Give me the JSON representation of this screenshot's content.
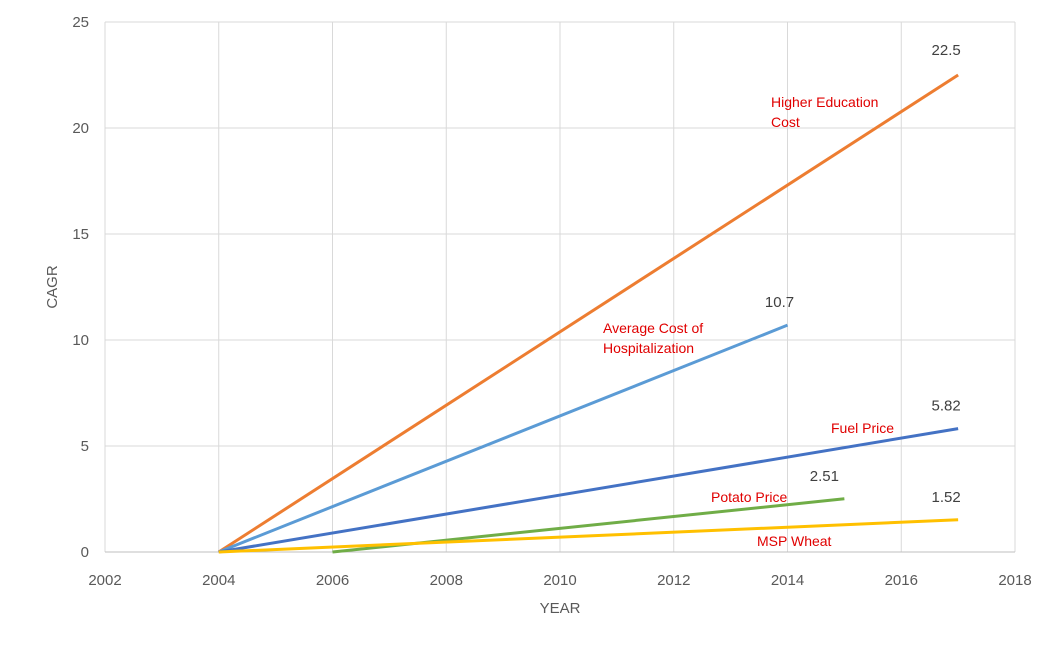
{
  "chart_data": {
    "type": "line",
    "title": "",
    "xlabel": "YEAR",
    "ylabel": "CAGR",
    "xlim": [
      2002,
      2018
    ],
    "ylim": [
      0,
      25
    ],
    "x_ticks": [
      2002,
      2004,
      2006,
      2008,
      2010,
      2012,
      2014,
      2016,
      2018
    ],
    "y_ticks": [
      0,
      5,
      10,
      15,
      20,
      25
    ],
    "grid": true,
    "legend": "none",
    "series": [
      {
        "name": "Higher Education Cost",
        "label_lines": [
          "Higher Education",
          "Cost"
        ],
        "color": "#ED7D31",
        "points": [
          [
            2004,
            0
          ],
          [
            2017,
            22.5
          ]
        ],
        "end_label": "22.5"
      },
      {
        "name": "Average Cost of Hospitalization",
        "label_lines": [
          "Average Cost of",
          "Hospitalization"
        ],
        "color": "#5B9BD5",
        "points": [
          [
            2004,
            0
          ],
          [
            2014,
            10.7
          ]
        ],
        "end_label": "10.7"
      },
      {
        "name": "Fuel Price",
        "label_lines": [
          "Fuel Price"
        ],
        "color": "#4472C4",
        "points": [
          [
            2004,
            0
          ],
          [
            2017,
            5.82
          ]
        ],
        "end_label": "5.82"
      },
      {
        "name": "Potato Price",
        "label_lines": [
          "Potato Price"
        ],
        "color": "#70AD47",
        "points": [
          [
            2006,
            0
          ],
          [
            2015,
            2.51
          ]
        ],
        "end_label": "2.51"
      },
      {
        "name": "MSP Wheat",
        "label_lines": [
          "MSP Wheat"
        ],
        "color": "#FFC000",
        "points": [
          [
            2004,
            0
          ],
          [
            2017,
            1.52
          ]
        ],
        "end_label": "1.52"
      }
    ]
  }
}
